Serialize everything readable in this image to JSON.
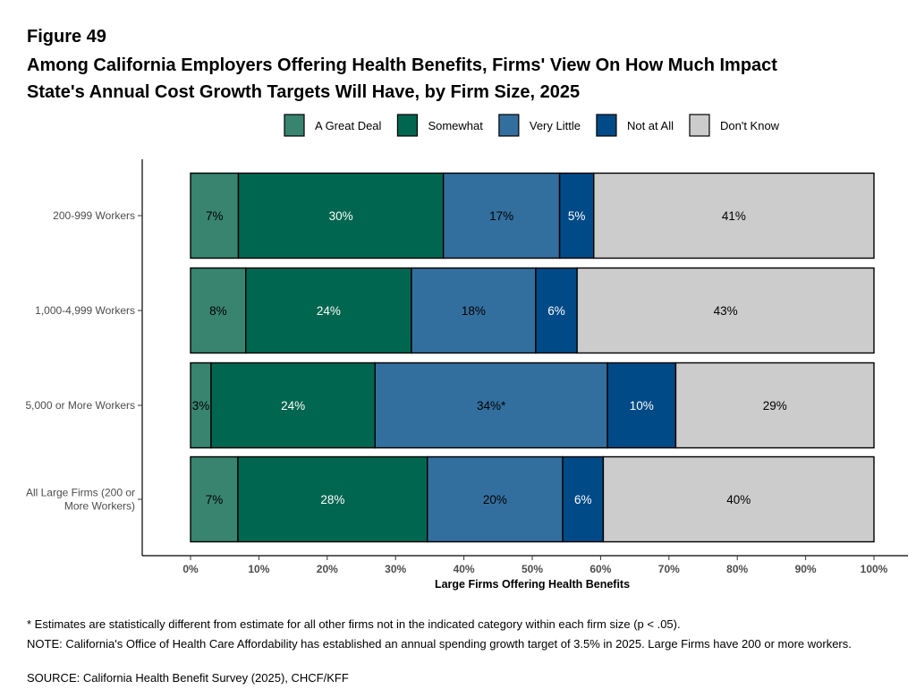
{
  "figure_label": "Figure 49",
  "title_line1": "Among California Employers Offering Health Benefits, Firms' View On How Much Impact",
  "title_line2": "State's Annual Cost Growth Targets Will Have, by Firm Size, 2025",
  "notes": [
    "* Estimates are statistically different from estimate for all other firms not in the indicated category within each firm size (p < .05).",
    "NOTE: California's Office of Health Care Affordability has established an annual spending growth target of 3.5% in 2025. Large Firms have 200 or more workers.",
    "SOURCE: California Health Benefit Survey (2025), CHCF/KFF"
  ],
  "chart_data": {
    "type": "bar",
    "orientation": "horizontal-stacked",
    "xlabel": "Large Firms Offering Health Benefits",
    "xlim": [
      0,
      100
    ],
    "x_ticks": [
      "0%",
      "10%",
      "20%",
      "30%",
      "40%",
      "50%",
      "60%",
      "70%",
      "80%",
      "90%",
      "100%"
    ],
    "legend_position": "top",
    "grid": false,
    "categories": [
      [
        "200-999 Workers"
      ],
      [
        "1,000-4,999 Workers"
      ],
      [
        "5,000 or More Workers"
      ],
      [
        "All Large Firms (200 or",
        "More Workers)"
      ]
    ],
    "series": [
      {
        "name": "A Great Deal",
        "color": "#38846f",
        "label_color": "#000000",
        "values": [
          7,
          8,
          3,
          7
        ],
        "labels": [
          "7%",
          "8%",
          "3%",
          "7%"
        ]
      },
      {
        "name": "Somewhat",
        "color": "#00664f",
        "label_color": "#ffffff",
        "values": [
          30,
          24,
          24,
          28
        ],
        "labels": [
          "30%",
          "24%",
          "24%",
          "28%"
        ]
      },
      {
        "name": "Very Little",
        "color": "#336f9e",
        "label_color": "#000000",
        "values": [
          17,
          18,
          34,
          20
        ],
        "labels": [
          "17%",
          "18%",
          "34%*",
          "20%"
        ]
      },
      {
        "name": "Not at All",
        "color": "#004a87",
        "label_color": "#ffffff",
        "values": [
          5,
          6,
          10,
          6
        ],
        "labels": [
          "5%",
          "6%",
          "10%",
          "6%"
        ]
      },
      {
        "name": "Don't Know",
        "color": "#cccccc",
        "label_color": "#000000",
        "values": [
          41,
          43,
          29,
          40
        ],
        "labels": [
          "41%",
          "43%",
          "29%",
          "40%"
        ]
      }
    ]
  }
}
